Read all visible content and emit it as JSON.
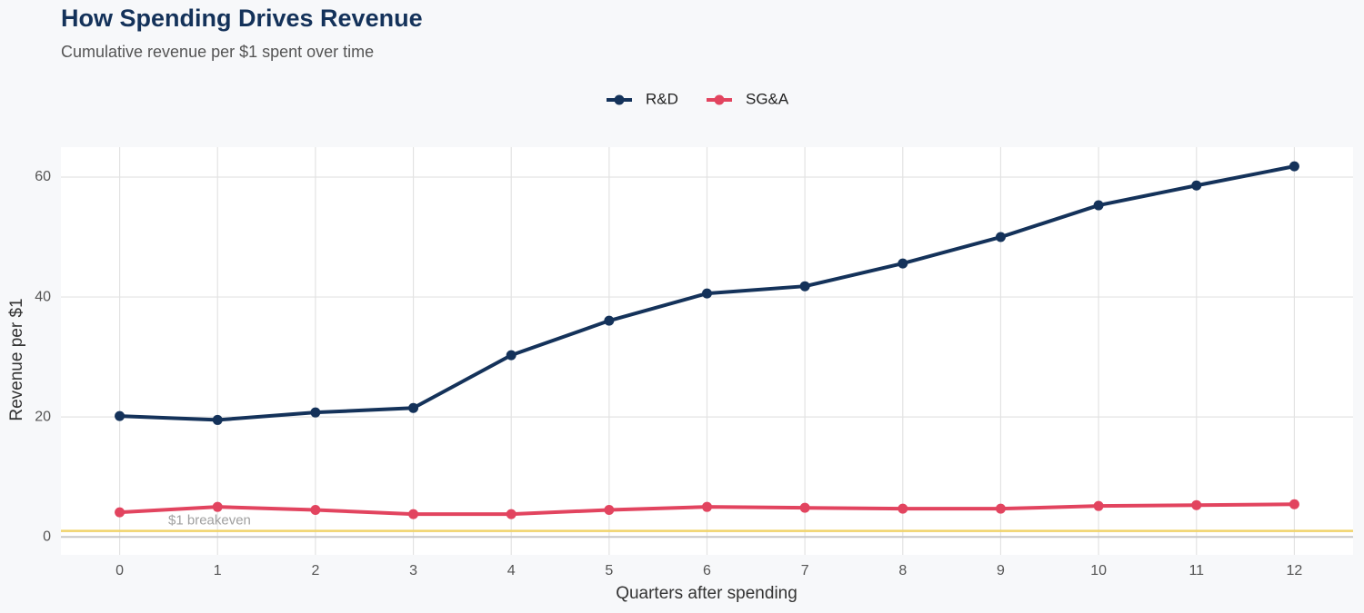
{
  "chart_data": {
    "type": "line",
    "title": "How Spending Drives Revenue",
    "subtitle": "Cumulative revenue per $1 spent over time",
    "x_label": "Quarters after spending",
    "y_label": "Revenue per $1",
    "x": [
      0,
      1,
      2,
      3,
      4,
      5,
      6,
      7,
      8,
      9,
      10,
      11,
      12
    ],
    "series": [
      {
        "name": "R&D",
        "color": "#14325a",
        "values": [
          20.15,
          19.5,
          20.75,
          21.5,
          30.3,
          36.05,
          40.6,
          41.8,
          45.6,
          50.0,
          55.3,
          58.6,
          61.8
        ]
      },
      {
        "name": "SG&A",
        "color": "#e2445f",
        "values": [
          4.1,
          5.0,
          4.5,
          3.8,
          3.8,
          4.5,
          5.0,
          4.85,
          4.7,
          4.7,
          5.15,
          5.3,
          5.45
        ]
      }
    ],
    "xlim": [
      -0.6,
      12.6
    ],
    "ylim": [
      -3,
      65
    ],
    "xticks": [
      0,
      1,
      2,
      3,
      4,
      5,
      6,
      7,
      8,
      9,
      10,
      11,
      12
    ],
    "yticks": [
      0,
      20,
      40,
      60
    ],
    "grid": true,
    "legend": "top",
    "reference_line": {
      "value": 1,
      "label": "$1 breakeven",
      "color": "#f0d36b"
    }
  }
}
